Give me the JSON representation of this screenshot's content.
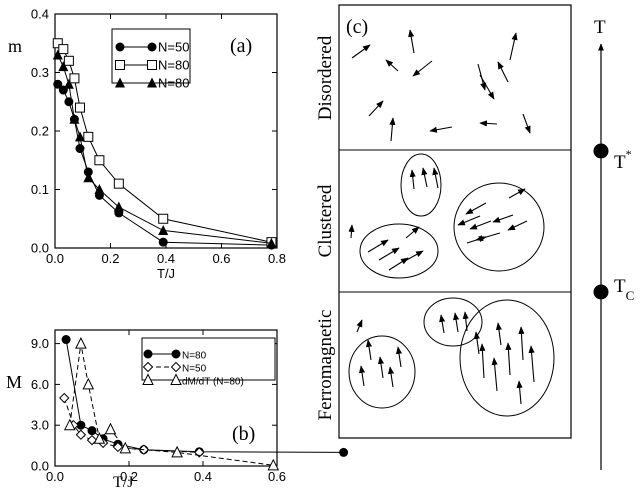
{
  "chart_data": [
    {
      "panel": "(a)",
      "type": "line",
      "xlabel": "T/J",
      "ylabel": "m",
      "xlim": [
        0,
        0.8
      ],
      "ylim": [
        0,
        0.4
      ],
      "xticks": [
        "0.0",
        "0.2",
        "0.4",
        "0.6",
        "0.8"
      ],
      "yticks": [
        "0.0",
        "0.1",
        "0.2",
        "0.3",
        "0.4"
      ],
      "legend_position": "top-right",
      "series": [
        {
          "name": "N=50",
          "marker": "filled-circle",
          "x": [
            0.01,
            0.03,
            0.05,
            0.07,
            0.09,
            0.12,
            0.16,
            0.23,
            0.39,
            0.78
          ],
          "y": [
            0.28,
            0.27,
            0.25,
            0.22,
            0.17,
            0.13,
            0.09,
            0.06,
            0.01,
            0.005
          ]
        },
        {
          "name": "N=80",
          "marker": "open-square",
          "x": [
            0.01,
            0.03,
            0.05,
            0.07,
            0.09,
            0.12,
            0.16,
            0.23,
            0.39,
            0.78
          ],
          "y": [
            0.35,
            0.34,
            0.32,
            0.29,
            0.24,
            0.19,
            0.15,
            0.11,
            0.05,
            0.01
          ]
        },
        {
          "name": "N=80",
          "marker": "filled-triangle",
          "x": [
            0.01,
            0.03,
            0.05,
            0.07,
            0.09,
            0.12,
            0.16,
            0.23,
            0.39,
            0.78
          ],
          "y": [
            0.33,
            0.31,
            0.28,
            0.22,
            0.19,
            0.12,
            0.1,
            0.07,
            0.03,
            0.008
          ]
        }
      ]
    },
    {
      "panel": "(b)",
      "type": "line",
      "xlabel": "T/J",
      "ylabel": "M",
      "xlim": [
        0,
        0.6
      ],
      "ylim": [
        0,
        10
      ],
      "xticks": [
        "0.0",
        "0.2",
        "0.4",
        "0.6"
      ],
      "yticks": [
        "0.0",
        "3.0",
        "6.0",
        "9.0"
      ],
      "legend_position": "top-right",
      "series": [
        {
          "name": "N=80",
          "marker": "filled-circle",
          "dash": "solid",
          "x": [
            0.03,
            0.07,
            0.1,
            0.13,
            0.17,
            0.24,
            0.39,
            0.78
          ],
          "y": [
            9.3,
            3.0,
            2.6,
            2.0,
            1.6,
            1.2,
            1.05,
            1.0
          ]
        },
        {
          "name": "N=50",
          "marker": "open-diamond",
          "dash": "dashed",
          "x": [
            0.025,
            0.05,
            0.07,
            0.1,
            0.13,
            0.17,
            0.24,
            0.39
          ],
          "y": [
            5.0,
            3.0,
            2.3,
            1.9,
            1.7,
            1.4,
            1.2,
            1.0
          ]
        },
        {
          "name": "dM/dT (N=80)",
          "marker": "open-triangle",
          "dash": "dashed",
          "x": [
            0.04,
            0.07,
            0.09,
            0.12,
            0.15,
            0.19,
            0.33,
            0.59
          ],
          "y": [
            3.0,
            9.0,
            6.0,
            2.0,
            2.7,
            1.3,
            1.0,
            0.05
          ]
        }
      ]
    }
  ],
  "labels": {
    "a_panel": "(a)",
    "b_panel": "(b)",
    "c_panel": "(c)",
    "t_axis": "T",
    "t_star_base": "T",
    "t_star_sup": "*",
    "tc_base": "T",
    "tc_sub": "C"
  },
  "phases": [
    "Disordered",
    "Clustered",
    "Ferromagnetic"
  ]
}
